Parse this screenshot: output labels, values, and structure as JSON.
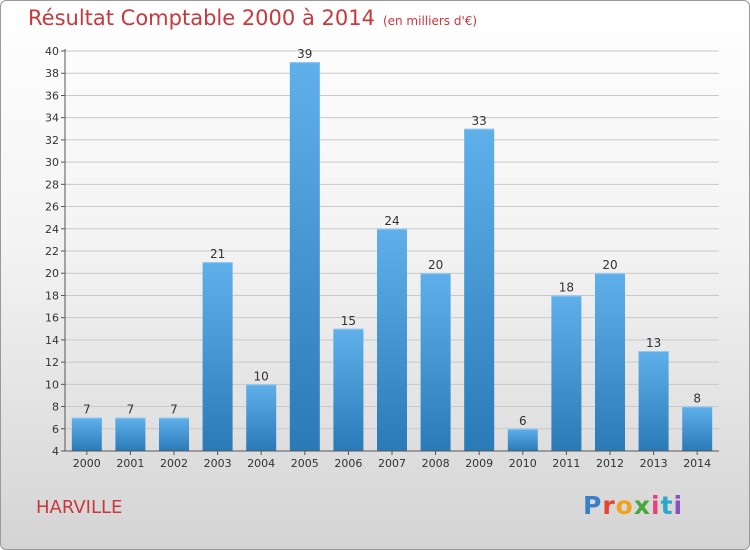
{
  "header": {
    "title": "Résultat Comptable 2000 à 2014",
    "unit": "(en milliers d'€)"
  },
  "footer": {
    "town": "HARVILLE",
    "logo": "Proxiti"
  },
  "colors": {
    "bar_light": "#5fb0ea",
    "bar_dark": "#2a7ab8",
    "title": "#c8383c",
    "grid": "#c9c9c9"
  },
  "chart_data": {
    "type": "bar",
    "title": "Résultat Comptable 2000 à 2014",
    "subtitle": "(en milliers d'€)",
    "xlabel": "",
    "ylabel": "",
    "categories": [
      "2000",
      "2001",
      "2002",
      "2003",
      "2004",
      "2005",
      "2006",
      "2007",
      "2008",
      "2009",
      "2010",
      "2011",
      "2012",
      "2013",
      "2014"
    ],
    "values": [
      7,
      7,
      7,
      21,
      10,
      39,
      15,
      24,
      20,
      33,
      6,
      18,
      20,
      13,
      8
    ],
    "ylim": [
      4,
      40
    ],
    "yticks": [
      4,
      6,
      8,
      10,
      12,
      14,
      16,
      18,
      20,
      22,
      24,
      26,
      28,
      30,
      32,
      34,
      36,
      38,
      40
    ],
    "grid": true,
    "legend": "none"
  }
}
